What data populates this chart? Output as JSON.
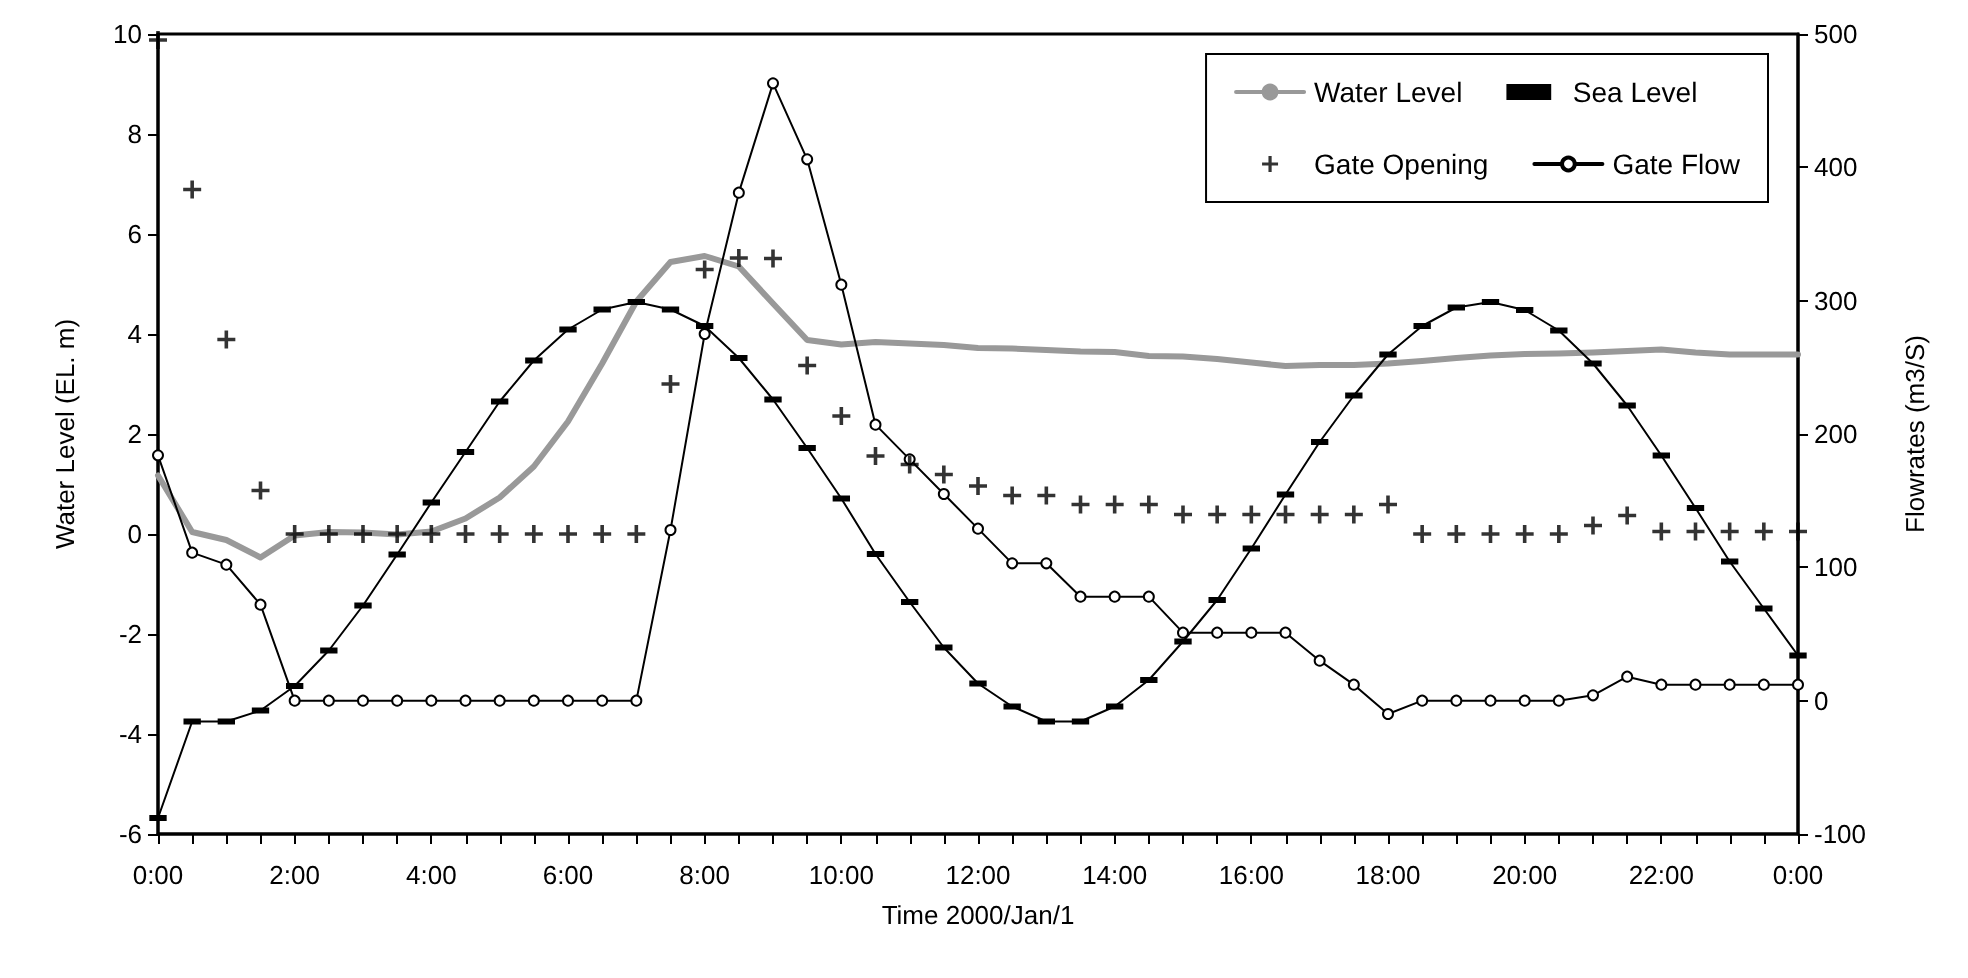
{
  "chart_data": {
    "type": "line",
    "xlabel": "Time 2000/Jan/1",
    "ylabel": "Water Level (EL. m)",
    "y2label": "Flowrates (m3/S)",
    "x": [
      0,
      0.5,
      1,
      1.5,
      2,
      2.5,
      3,
      3.5,
      4,
      4.5,
      5,
      5.5,
      6,
      6.5,
      7,
      7.5,
      8,
      8.5,
      9,
      9.5,
      10,
      10.5,
      11,
      11.5,
      12,
      12.5,
      13,
      13.5,
      14,
      14.5,
      15,
      15.5,
      16,
      16.5,
      17,
      17.5,
      18,
      18.5,
      19,
      19.5,
      20,
      20.5,
      21,
      21.5,
      22,
      22.5,
      23,
      23.5,
      24
    ],
    "series": [
      {
        "name": "Water Level",
        "color": "#999999",
        "marker": "none",
        "values": [
          1.17,
          0.04,
          -0.12,
          -0.47,
          -0.03,
          0.04,
          0.03,
          -0.01,
          0.05,
          0.31,
          0.73,
          1.35,
          2.25,
          3.41,
          4.65,
          5.44,
          5.56,
          5.35,
          4.61,
          3.88,
          3.79,
          3.84,
          3.81,
          3.78,
          3.72,
          3.71,
          3.68,
          3.65,
          3.64,
          3.56,
          3.55,
          3.5,
          3.43,
          3.36,
          3.38,
          3.38,
          3.41,
          3.46,
          3.52,
          3.57,
          3.6,
          3.61,
          3.63,
          3.66,
          3.69,
          3.63,
          3.59,
          3.59,
          3.59
        ]
      },
      {
        "name": "Sea Level",
        "color": "#000000",
        "marker": "square",
        "values": [
          -5.68,
          -3.75,
          -3.75,
          -3.53,
          -3.04,
          -2.33,
          -1.43,
          -0.41,
          0.63,
          1.64,
          2.65,
          3.47,
          4.09,
          4.49,
          4.64,
          4.49,
          4.16,
          3.52,
          2.69,
          1.72,
          0.71,
          -0.4,
          -1.36,
          -2.27,
          -2.99,
          -3.45,
          -3.75,
          -3.75,
          -3.45,
          -2.92,
          -2.15,
          -1.32,
          -0.29,
          0.79,
          1.84,
          2.77,
          3.59,
          4.16,
          4.53,
          4.64,
          4.48,
          4.07,
          3.41,
          2.57,
          1.57,
          0.52,
          -0.55,
          -1.49,
          -2.43
        ]
      },
      {
        "name": "Gate Opening",
        "type": "scatter",
        "color": "#000000",
        "marker": "cross",
        "values": [
          9.88,
          6.89,
          3.89,
          0.87,
          0,
          0,
          0,
          0,
          0,
          0,
          0,
          0,
          0,
          0,
          0,
          3.0,
          5.29,
          5.52,
          5.51,
          3.37,
          2.36,
          1.56,
          1.39,
          1.19,
          0.96,
          0.77,
          0.77,
          0.59,
          0.59,
          0.59,
          0.39,
          0.39,
          0.39,
          0.39,
          0.39,
          0.39,
          0.59,
          0,
          0,
          0,
          0,
          0,
          0.17,
          0.37,
          0.05,
          0.05,
          0.05,
          0.05,
          0.05
        ]
      },
      {
        "name": "Gate Flow",
        "axis": "y2",
        "color": "#000000",
        "marker": "circle",
        "values": [
          184,
          111,
          102,
          72,
          0,
          0,
          0,
          0,
          0,
          0,
          0,
          0,
          0,
          0,
          0,
          128,
          275,
          381,
          463,
          406,
          312,
          207,
          181,
          155,
          129,
          103,
          103,
          78,
          78,
          78,
          51,
          51,
          51,
          51,
          30,
          12,
          -10,
          0,
          0,
          0,
          0,
          0,
          4,
          18,
          12,
          12,
          12,
          12,
          12
        ]
      }
    ],
    "xlim": [
      0,
      24
    ],
    "xticks": [
      {
        "value": 0,
        "label": "0:00"
      },
      {
        "value": 0.5,
        "label": null
      },
      {
        "value": 1,
        "label": null
      },
      {
        "value": 1.5,
        "label": null
      },
      {
        "value": 2,
        "label": "2:00"
      },
      {
        "value": 2.5,
        "label": null
      },
      {
        "value": 3,
        "label": null
      },
      {
        "value": 3.5,
        "label": null
      },
      {
        "value": 4,
        "label": "4:00"
      },
      {
        "value": 4.5,
        "label": null
      },
      {
        "value": 5,
        "label": null
      },
      {
        "value": 5.5,
        "label": null
      },
      {
        "value": 6,
        "label": "6:00"
      },
      {
        "value": 6.5,
        "label": null
      },
      {
        "value": 7,
        "label": null
      },
      {
        "value": 7.5,
        "label": null
      },
      {
        "value": 8,
        "label": "8:00"
      },
      {
        "value": 8.5,
        "label": null
      },
      {
        "value": 9,
        "label": null
      },
      {
        "value": 9.5,
        "label": null
      },
      {
        "value": 10,
        "label": "10:00"
      },
      {
        "value": 10.5,
        "label": null
      },
      {
        "value": 11,
        "label": null
      },
      {
        "value": 11.5,
        "label": null
      },
      {
        "value": 12,
        "label": "12:00"
      },
      {
        "value": 12.5,
        "label": null
      },
      {
        "value": 13,
        "label": null
      },
      {
        "value": 13.5,
        "label": null
      },
      {
        "value": 14,
        "label": "14:00"
      },
      {
        "value": 14.5,
        "label": null
      },
      {
        "value": 15,
        "label": null
      },
      {
        "value": 15.5,
        "label": null
      },
      {
        "value": 16,
        "label": "16:00"
      },
      {
        "value": 16.5,
        "label": null
      },
      {
        "value": 17,
        "label": null
      },
      {
        "value": 17.5,
        "label": null
      },
      {
        "value": 18,
        "label": "18:00"
      },
      {
        "value": 18.5,
        "label": null
      },
      {
        "value": 19,
        "label": null
      },
      {
        "value": 19.5,
        "label": null
      },
      {
        "value": 20,
        "label": "20:00"
      },
      {
        "value": 20.5,
        "label": null
      },
      {
        "value": 21,
        "label": null
      },
      {
        "value": 21.5,
        "label": null
      },
      {
        "value": 22,
        "label": "22:00"
      },
      {
        "value": 22.5,
        "label": null
      },
      {
        "value": 23,
        "label": null
      },
      {
        "value": 23.5,
        "label": null
      },
      {
        "value": 24,
        "label": "0:00"
      }
    ],
    "ylim": [
      -6,
      10
    ],
    "yticks": [
      -6,
      -4,
      -2,
      0,
      2,
      4,
      6,
      8,
      10
    ],
    "y2lim": [
      -100,
      500
    ],
    "y2ticks": [
      -100,
      0,
      100,
      200,
      300,
      400,
      500
    ],
    "grid": false,
    "legend": "top right"
  }
}
